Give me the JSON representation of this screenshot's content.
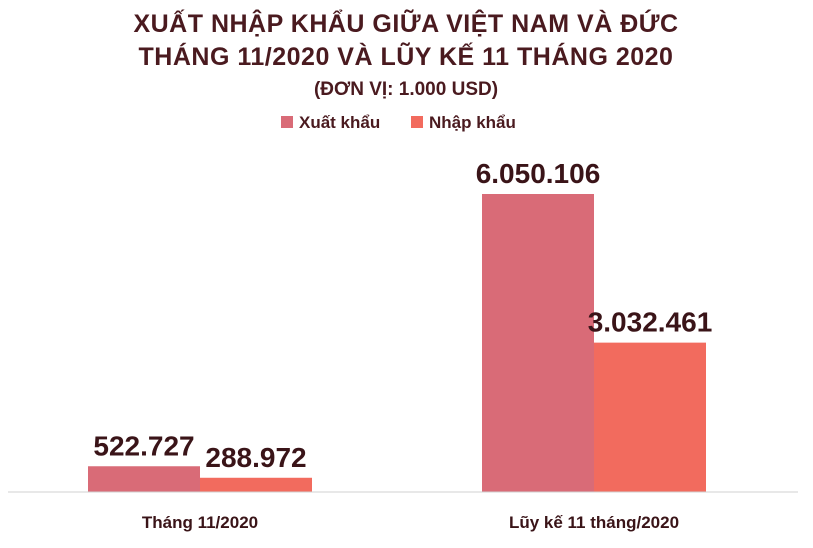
{
  "chart_data": {
    "type": "bar",
    "title_lines": [
      "XUẤT NHẬP KHẨU GIỮA VIỆT NAM VÀ ĐỨC",
      "THÁNG 11/2020 VÀ LŨY KẾ 11 THÁNG 2020"
    ],
    "unit": "(ĐƠN VỊ: 1.000 USD)",
    "categories": [
      "Tháng 11/2020",
      "Lũy kế 11 tháng/2020"
    ],
    "series": [
      {
        "name": "Xuất khẩu",
        "color": "#d96b77",
        "values": [
          522727,
          6050106
        ],
        "labels": [
          "522.727",
          "6.050.106"
        ]
      },
      {
        "name": "Nhập khẩu",
        "color": "#f26b5e",
        "values": [
          288972,
          3032461
        ],
        "labels": [
          "288.972",
          "3.032.461"
        ]
      }
    ],
    "ylim": [
      0,
      6050106
    ],
    "grid": false,
    "legend_position": "top-center",
    "axis_color": "#d0d0d0",
    "text_color": "#4a1a1f"
  }
}
